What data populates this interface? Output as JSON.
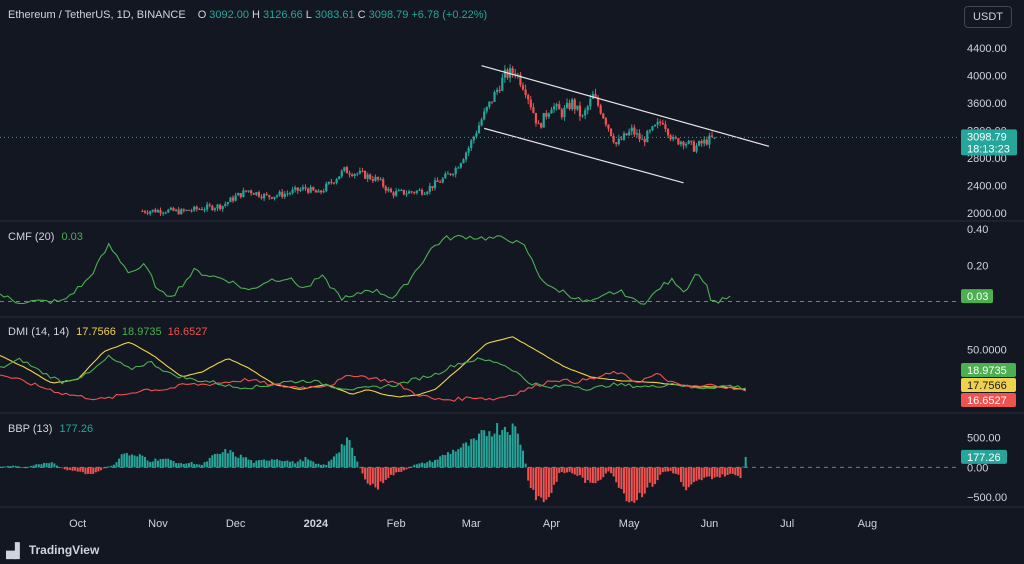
{
  "currency": "USDT",
  "watermark": "TradingView",
  "colors": {
    "up": "#26a69a",
    "down": "#ef5350",
    "bg": "#131722",
    "text": "#d1d4dc",
    "cmf": "#4caf50",
    "dmi_adx": "#f0d24a",
    "dmi_plus": "#4caf50",
    "dmi_minus": "#ef5350"
  },
  "header": {
    "symbol": "Ethereum / TetherUS, 1D, BINANCE",
    "o_label": "O",
    "o": "3092.00",
    "h_label": "H",
    "h": "3126.66",
    "l_label": "L",
    "l": "3083.61",
    "c_label": "C",
    "c": "3098.79",
    "change": "+6.78 (+0.22%)"
  },
  "price_tag": {
    "value": "3098.79",
    "countdown": "18:13:23"
  },
  "cmf_legend": {
    "name": "CMF (20)",
    "value": "0.03"
  },
  "dmi_legend": {
    "name": "DMI (14, 14)",
    "adx": "17.7566",
    "plus": "18.9735",
    "minus": "16.6527"
  },
  "bbp_legend": {
    "name": "BBP (13)",
    "value": "177.26"
  },
  "chart_data": [
    {
      "type": "candlestick",
      "pane": "price",
      "title": "Ethereum / TetherUS, 1D, BINANCE",
      "y_ticks": [
        "4400.00",
        "4000.00",
        "3600.00",
        "3200.00",
        "2800.00",
        "2400.00",
        "2000.00"
      ],
      "ylim": [
        1900,
        4600
      ],
      "x_ticks": [
        "Oct",
        "Nov",
        "Dec",
        "2024",
        "Feb",
        "Mar",
        "Apr",
        "May",
        "Jun",
        "Jul",
        "Aug"
      ],
      "x_ticks_day": [
        0,
        31,
        61,
        92,
        123,
        152,
        183,
        213,
        244,
        274,
        305
      ],
      "xlim": [
        -30,
        340
      ],
      "last_close": 3098.79,
      "channel_upper": [
        [
          156,
          4140
        ],
        [
          267,
          2970
        ]
      ],
      "channel_lower": [
        [
          157,
          3230
        ],
        [
          234,
          2440
        ]
      ],
      "control_points": [
        [
          25,
          2030
        ],
        [
          33,
          2040
        ],
        [
          40,
          2020
        ],
        [
          48,
          2070
        ],
        [
          56,
          2110
        ],
        [
          61,
          2240
        ],
        [
          66,
          2330
        ],
        [
          73,
          2240
        ],
        [
          80,
          2280
        ],
        [
          88,
          2360
        ],
        [
          93,
          2280
        ],
        [
          100,
          2520
        ],
        [
          103,
          2620
        ],
        [
          110,
          2560
        ],
        [
          116,
          2480
        ],
        [
          121,
          2290
        ],
        [
          127,
          2300
        ],
        [
          134,
          2330
        ],
        [
          141,
          2490
        ],
        [
          146,
          2650
        ],
        [
          151,
          2950
        ],
        [
          156,
          3360
        ],
        [
          160,
          3650
        ],
        [
          165,
          4000
        ],
        [
          169,
          4060
        ],
        [
          173,
          3800
        ],
        [
          178,
          3250
        ],
        [
          183,
          3570
        ],
        [
          187,
          3450
        ],
        [
          191,
          3600
        ],
        [
          195,
          3380
        ],
        [
          199,
          3700
        ],
        [
          202,
          3500
        ],
        [
          208,
          3000
        ],
        [
          214,
          3200
        ],
        [
          218,
          3050
        ],
        [
          222,
          3200
        ],
        [
          226,
          3350
        ],
        [
          230,
          3050
        ],
        [
          234,
          3050
        ],
        [
          238,
          2950
        ],
        [
          243,
          3050
        ],
        [
          246,
          3100
        ]
      ]
    },
    {
      "type": "line",
      "pane": "cmf",
      "title": "CMF (20)",
      "value": 0.03,
      "y_ticks": [
        "0.40",
        "0.20"
      ],
      "ylim": [
        -0.08,
        0.44
      ],
      "zero_line": 0,
      "control_points": [
        [
          -30,
          0.04
        ],
        [
          -24,
          0.0
        ],
        [
          -16,
          0.0
        ],
        [
          -6,
          0.0
        ],
        [
          4,
          0.12
        ],
        [
          12,
          0.31
        ],
        [
          20,
          0.16
        ],
        [
          26,
          0.2
        ],
        [
          32,
          0.04
        ],
        [
          37,
          0.04
        ],
        [
          45,
          0.17
        ],
        [
          52,
          0.14
        ],
        [
          58,
          0.12
        ],
        [
          66,
          0.06
        ],
        [
          74,
          0.12
        ],
        [
          81,
          0.13
        ],
        [
          88,
          0.07
        ],
        [
          94,
          0.14
        ],
        [
          102,
          0.02
        ],
        [
          106,
          0.02
        ],
        [
          112,
          0.07
        ],
        [
          117,
          0.05
        ],
        [
          122,
          0.02
        ],
        [
          126,
          0.08
        ],
        [
          132,
          0.2
        ],
        [
          137,
          0.3
        ],
        [
          142,
          0.35
        ],
        [
          150,
          0.36
        ],
        [
          158,
          0.35
        ],
        [
          166,
          0.35
        ],
        [
          173,
          0.3
        ],
        [
          178,
          0.15
        ],
        [
          183,
          0.07
        ],
        [
          187,
          0.06
        ],
        [
          195,
          0.0
        ],
        [
          200,
          0.0
        ],
        [
          206,
          0.05
        ],
        [
          211,
          0.05
        ],
        [
          215,
          0.0
        ],
        [
          220,
          0.0
        ],
        [
          225,
          0.08
        ],
        [
          230,
          0.12
        ],
        [
          235,
          0.05
        ],
        [
          238,
          0.16
        ],
        [
          242,
          0.12
        ],
        [
          245,
          0.0
        ],
        [
          248,
          0.0
        ],
        [
          252,
          0.03
        ]
      ]
    },
    {
      "type": "line",
      "pane": "dmi",
      "title": "DMI (14, 14)",
      "y_ticks": [
        "50.0000"
      ],
      "ylim": [
        0,
        75
      ],
      "series": [
        {
          "name": "ADX",
          "value": 17.7566,
          "color": "#f0d24a",
          "control_points": [
            [
              -30,
              45
            ],
            [
              -20,
              35
            ],
            [
              -10,
              23
            ],
            [
              0,
              26
            ],
            [
              10,
              48
            ],
            [
              20,
              56
            ],
            [
              30,
              44
            ],
            [
              40,
              28
            ],
            [
              48,
              32
            ],
            [
              58,
              43
            ],
            [
              66,
              35
            ],
            [
              76,
              22
            ],
            [
              86,
              18
            ],
            [
              96,
              22
            ],
            [
              106,
              14
            ],
            [
              112,
              18
            ],
            [
              118,
              14
            ],
            [
              124,
              12
            ],
            [
              132,
              14
            ],
            [
              138,
              18
            ],
            [
              148,
              36
            ],
            [
              158,
              55
            ],
            [
              168,
              60
            ],
            [
              178,
              48
            ],
            [
              188,
              36
            ],
            [
              198,
              28
            ],
            [
              210,
              25
            ],
            [
              220,
              24
            ],
            [
              230,
              22
            ],
            [
              240,
              20
            ],
            [
              250,
              20
            ],
            [
              258,
              17.7566
            ]
          ]
        },
        {
          "name": "+DI",
          "value": 18.9735,
          "color": "#4caf50",
          "control_points": [
            [
              -30,
              35
            ],
            [
              -22,
              42
            ],
            [
              -14,
              32
            ],
            [
              -6,
              24
            ],
            [
              4,
              30
            ],
            [
              12,
              44
            ],
            [
              20,
              34
            ],
            [
              28,
              40
            ],
            [
              36,
              30
            ],
            [
              44,
              26
            ],
            [
              52,
              24
            ],
            [
              60,
              20
            ],
            [
              70,
              20
            ],
            [
              80,
              24
            ],
            [
              90,
              25
            ],
            [
              100,
              20
            ],
            [
              108,
              18
            ],
            [
              116,
              20
            ],
            [
              124,
              22
            ],
            [
              130,
              26
            ],
            [
              138,
              30
            ],
            [
              146,
              38
            ],
            [
              154,
              42
            ],
            [
              162,
              40
            ],
            [
              168,
              34
            ],
            [
              174,
              24
            ],
            [
              182,
              19
            ],
            [
              190,
              22
            ],
            [
              198,
              18
            ],
            [
              206,
              22
            ],
            [
              214,
              21
            ],
            [
              222,
              20
            ],
            [
              230,
              23
            ],
            [
              238,
              19
            ],
            [
              246,
              20
            ],
            [
              252,
              21
            ],
            [
              258,
              18.9735
            ]
          ]
        },
        {
          "name": "-DI",
          "value": 16.6527,
          "color": "#ef5350",
          "control_points": [
            [
              -30,
              30
            ],
            [
              -22,
              25
            ],
            [
              -14,
              20
            ],
            [
              -6,
              15
            ],
            [
              2,
              12
            ],
            [
              10,
              10
            ],
            [
              18,
              14
            ],
            [
              26,
              18
            ],
            [
              34,
              18
            ],
            [
              42,
              22
            ],
            [
              50,
              22
            ],
            [
              58,
              24
            ],
            [
              66,
              26
            ],
            [
              74,
              22
            ],
            [
              82,
              20
            ],
            [
              90,
              20
            ],
            [
              98,
              22
            ],
            [
              106,
              30
            ],
            [
              114,
              27
            ],
            [
              122,
              24
            ],
            [
              130,
              15
            ],
            [
              138,
              10
            ],
            [
              146,
              10
            ],
            [
              154,
              12
            ],
            [
              160,
              10
            ],
            [
              168,
              14
            ],
            [
              176,
              20
            ],
            [
              184,
              26
            ],
            [
              192,
              24
            ],
            [
              200,
              27
            ],
            [
              208,
              32
            ],
            [
              216,
              24
            ],
            [
              224,
              30
            ],
            [
              232,
              21
            ],
            [
              240,
              20
            ],
            [
              246,
              22
            ],
            [
              252,
              19
            ],
            [
              258,
              16.6527
            ]
          ]
        }
      ]
    },
    {
      "type": "bar",
      "pane": "bbp",
      "title": "BBP (13)",
      "value": 177.26,
      "y_ticks": [
        "500.00",
        "0.00",
        "−500.00"
      ],
      "ylim": [
        -650,
        900
      ],
      "control_points": [
        [
          -30,
          10
        ],
        [
          -25,
          30
        ],
        [
          -20,
          0
        ],
        [
          -15,
          60
        ],
        [
          -10,
          80
        ],
        [
          -5,
          -40
        ],
        [
          0,
          -60
        ],
        [
          5,
          -120
        ],
        [
          10,
          -20
        ],
        [
          14,
          50
        ],
        [
          18,
          250
        ],
        [
          22,
          180
        ],
        [
          25,
          200
        ],
        [
          28,
          110
        ],
        [
          32,
          150
        ],
        [
          36,
          120
        ],
        [
          40,
          60
        ],
        [
          44,
          80
        ],
        [
          48,
          40
        ],
        [
          52,
          180
        ],
        [
          55,
          230
        ],
        [
          58,
          280
        ],
        [
          61,
          200
        ],
        [
          64,
          180
        ],
        [
          68,
          90
        ],
        [
          72,
          120
        ],
        [
          76,
          150
        ],
        [
          80,
          120
        ],
        [
          84,
          80
        ],
        [
          88,
          150
        ],
        [
          92,
          60
        ],
        [
          96,
          40
        ],
        [
          100,
          250
        ],
        [
          104,
          480
        ],
        [
          107,
          200
        ],
        [
          110,
          -120
        ],
        [
          113,
          -280
        ],
        [
          116,
          -340
        ],
        [
          119,
          -180
        ],
        [
          123,
          -100
        ],
        [
          127,
          -30
        ],
        [
          130,
          40
        ],
        [
          134,
          80
        ],
        [
          138,
          120
        ],
        [
          142,
          220
        ],
        [
          146,
          300
        ],
        [
          150,
          370
        ],
        [
          154,
          440
        ],
        [
          157,
          580
        ],
        [
          160,
          640
        ],
        [
          163,
          670
        ],
        [
          166,
          700
        ],
        [
          169,
          640
        ],
        [
          172,
          320
        ],
        [
          174,
          -200
        ],
        [
          177,
          -480
        ],
        [
          180,
          -560
        ],
        [
          183,
          -420
        ],
        [
          186,
          -100
        ],
        [
          190,
          -80
        ],
        [
          194,
          -150
        ],
        [
          198,
          -300
        ],
        [
          202,
          -180
        ],
        [
          205,
          -60
        ],
        [
          208,
          -220
        ],
        [
          211,
          -430
        ],
        [
          214,
          -570
        ],
        [
          217,
          -470
        ],
        [
          220,
          -340
        ],
        [
          223,
          -260
        ],
        [
          226,
          -80
        ],
        [
          229,
          -60
        ],
        [
          232,
          -140
        ],
        [
          235,
          -430
        ],
        [
          238,
          -280
        ],
        [
          241,
          -200
        ],
        [
          244,
          -170
        ],
        [
          247,
          -160
        ],
        [
          250,
          -130
        ],
        [
          253,
          -120
        ],
        [
          256,
          -150
        ],
        [
          258,
          177
        ]
      ]
    }
  ]
}
